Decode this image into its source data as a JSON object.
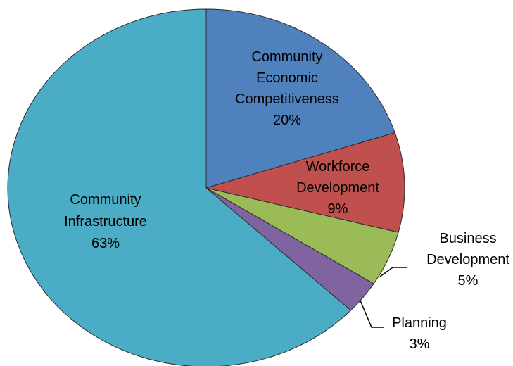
{
  "chart_data": {
    "type": "pie",
    "title": "",
    "slices": [
      {
        "name": "Community Economic Competitiveness",
        "label_lines": [
          "Community",
          "Economic",
          "Competitiveness"
        ],
        "value": 20,
        "value_label": "20%",
        "color": "#4F81BD"
      },
      {
        "name": "Workforce Development",
        "label_lines": [
          "Workforce",
          "Development"
        ],
        "value": 9,
        "value_label": "9%",
        "color": "#C0504D"
      },
      {
        "name": "Business Development",
        "label_lines": [
          "Business",
          "Development"
        ],
        "value": 5,
        "value_label": "5%",
        "color": "#9BBB59"
      },
      {
        "name": "Planning",
        "label_lines": [
          "Planning"
        ],
        "value": 3,
        "value_label": "3%",
        "color": "#8064A2"
      },
      {
        "name": "Community Infrastructure",
        "label_lines": [
          "Community",
          "Infrastructure"
        ],
        "value": 63,
        "value_label": "63%",
        "color": "#4BACC6"
      }
    ],
    "start_angle": "12 o'clock",
    "direction": "clockwise",
    "legend": "none"
  }
}
